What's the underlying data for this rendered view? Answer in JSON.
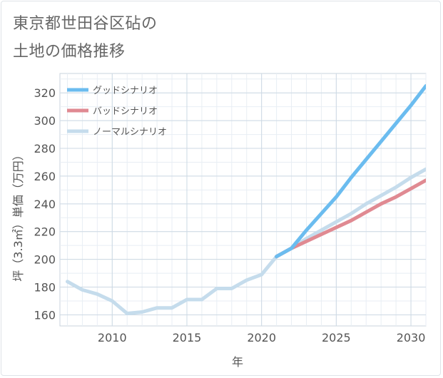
{
  "header": {
    "title_line1": "東京都世田谷区砧の",
    "title_line2": "土地の価格推移"
  },
  "chart_data": {
    "type": "line",
    "title": "東京都世田谷区砧の土地の価格推移",
    "xlabel": "年",
    "ylabel": "坪（3.3㎡）単価（万円）",
    "xlim": [
      2006.5,
      2031
    ],
    "ylim": [
      152,
      334
    ],
    "x_ticks": [
      2010,
      2015,
      2020,
      2025,
      2030
    ],
    "y_ticks": [
      160,
      180,
      200,
      220,
      240,
      260,
      280,
      300,
      320
    ],
    "grid": true,
    "legend_position": "top-left",
    "series": [
      {
        "name": "グッドシナリオ",
        "color": "#6bbcef",
        "x": [
          2021,
          2022,
          2023,
          2024,
          2025,
          2026,
          2027,
          2028,
          2029,
          2030,
          2031
        ],
        "values": [
          202,
          208,
          221,
          233,
          245,
          259,
          272,
          285,
          298,
          311,
          325
        ]
      },
      {
        "name": "バッドシナリオ",
        "color": "#e08a92",
        "x": [
          2021,
          2022,
          2023,
          2024,
          2025,
          2026,
          2027,
          2028,
          2029,
          2030,
          2031
        ],
        "values": [
          202,
          208,
          213,
          218,
          223,
          228,
          234,
          240,
          245,
          251,
          257
        ]
      },
      {
        "name": "ノーマルシナリオ",
        "color": "#c5dcec",
        "x": [
          2007,
          2008,
          2009,
          2010,
          2011,
          2012,
          2013,
          2014,
          2015,
          2016,
          2017,
          2018,
          2019,
          2020,
          2021,
          2022,
          2023,
          2024,
          2025,
          2026,
          2027,
          2028,
          2029,
          2030,
          2031
        ],
        "values": [
          184,
          178,
          175,
          170,
          161,
          162,
          165,
          165,
          171,
          171,
          179,
          179,
          185,
          189,
          202,
          208,
          215,
          221,
          227,
          233,
          240,
          246,
          252,
          259,
          265
        ]
      }
    ]
  }
}
